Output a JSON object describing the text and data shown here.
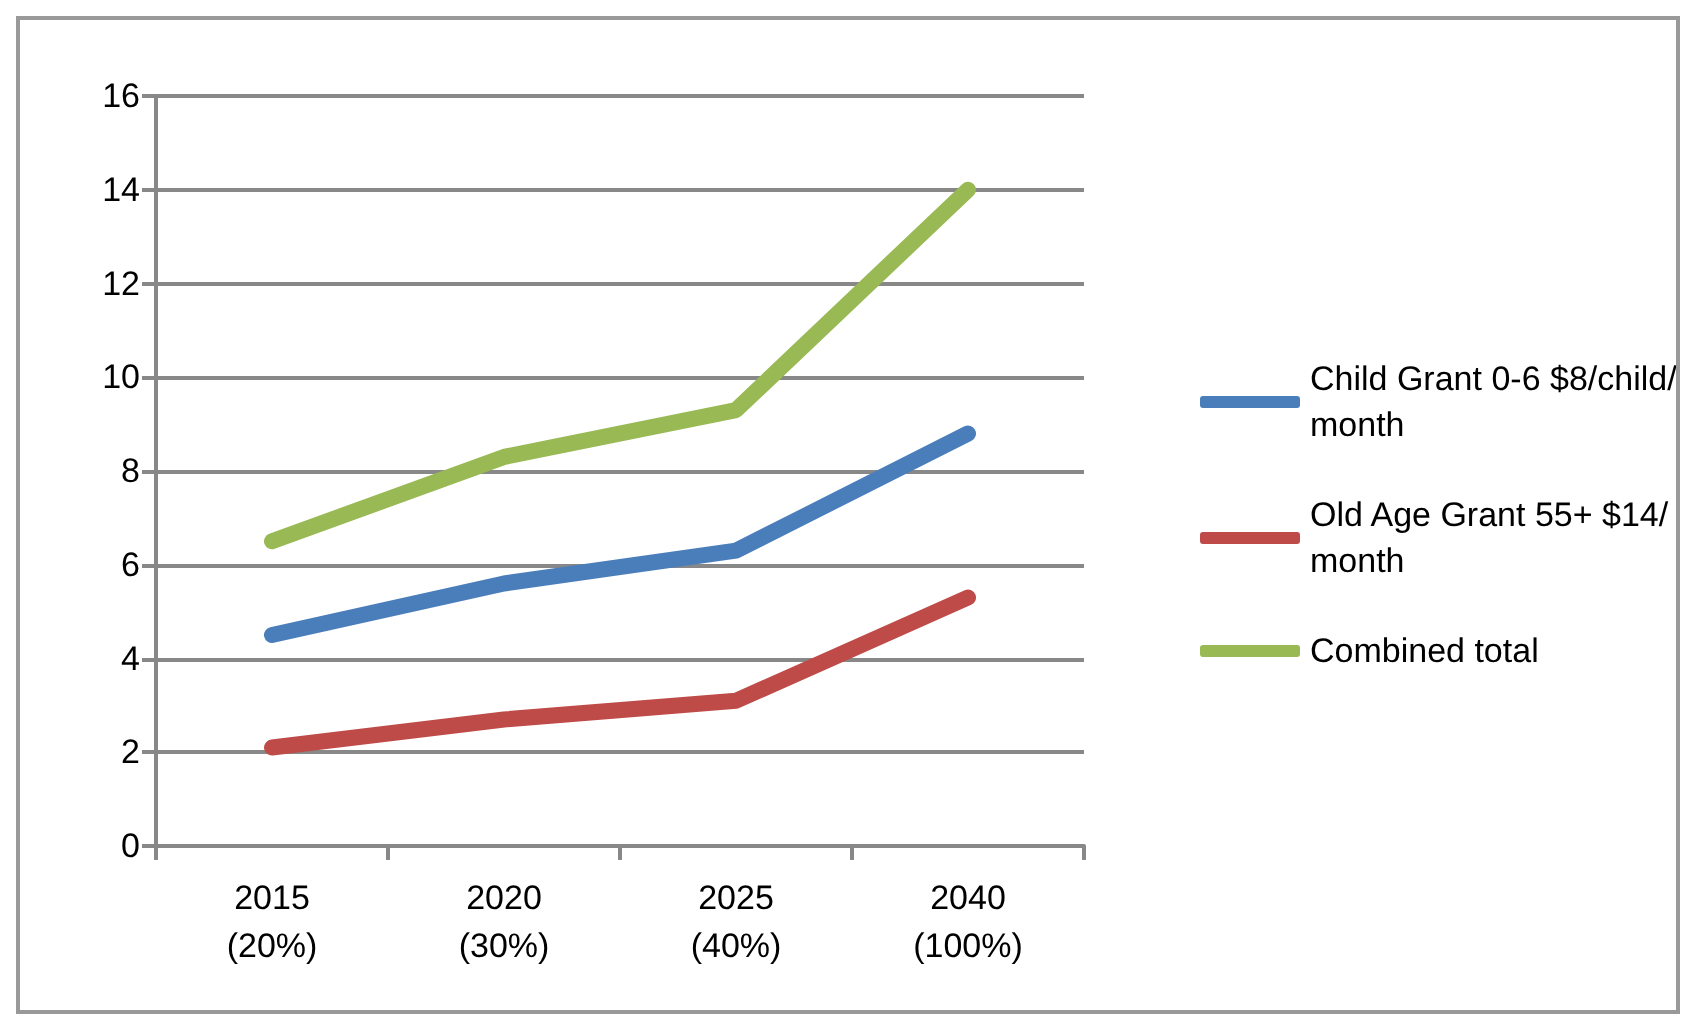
{
  "chart_data": {
    "type": "line",
    "categories": [
      "2015\n(20%)",
      "2020\n(30%)",
      "2025\n(40%)",
      "2040\n(100%)"
    ],
    "series": [
      {
        "name": "Child Grant 0-6 $8/child/month",
        "color": "#4a7ebb",
        "values": [
          4.5,
          5.6,
          6.3,
          8.8
        ]
      },
      {
        "name": "Old Age Grant 55+ $14/month",
        "color": "#be4b48",
        "values": [
          2.1,
          2.7,
          3.1,
          5.3
        ]
      },
      {
        "name": "Combined total",
        "color": "#98b954",
        "values": [
          6.5,
          8.3,
          9.3,
          14.0
        ]
      }
    ],
    "ylim": [
      0,
      16
    ],
    "yticks": [
      0,
      2,
      4,
      6,
      8,
      10,
      12,
      14,
      16
    ],
    "grid": "y",
    "legend": "right",
    "line_style": "solid"
  }
}
